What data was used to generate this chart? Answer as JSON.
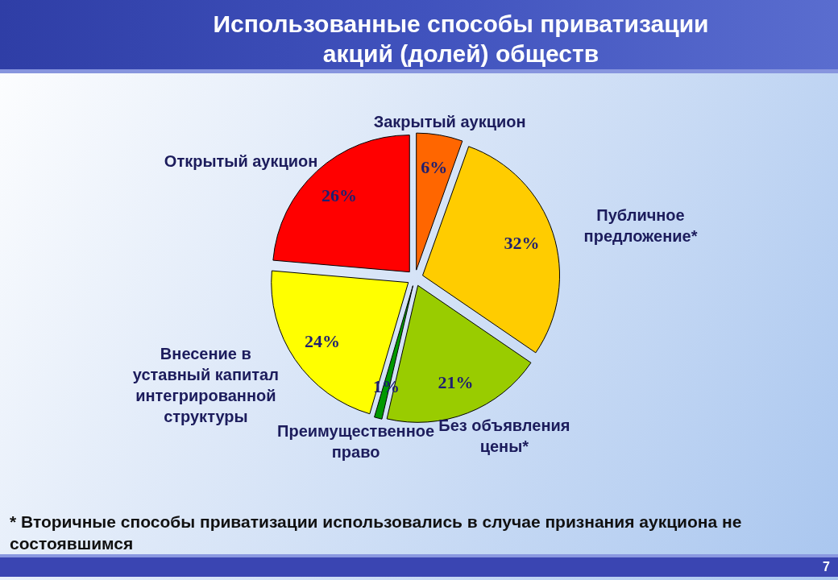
{
  "chart_data": {
    "type": "pie",
    "title": "Использованные способы приватизации акций (долей) обществ",
    "categories": [
      "Закрытый аукцион",
      "Публичное предложение*",
      "Без объявления цены*",
      "Преимущественное право",
      "Внесение в уставный капитал интегрированной структуры",
      "Открытый аукцион"
    ],
    "values": [
      6,
      32,
      21,
      1,
      24,
      26
    ],
    "colors": [
      "#ff6600",
      "#ffcc00",
      "#99cc00",
      "#009900",
      "#ffff00",
      "#ff0000"
    ],
    "value_labels": [
      "6%",
      "32%",
      "21%",
      "1%",
      "24%",
      "26%"
    ],
    "annotations": [
      "* Вторичные способы приватизации использовались в случае признания аукциона не состоявшимся",
      "7"
    ]
  }
}
